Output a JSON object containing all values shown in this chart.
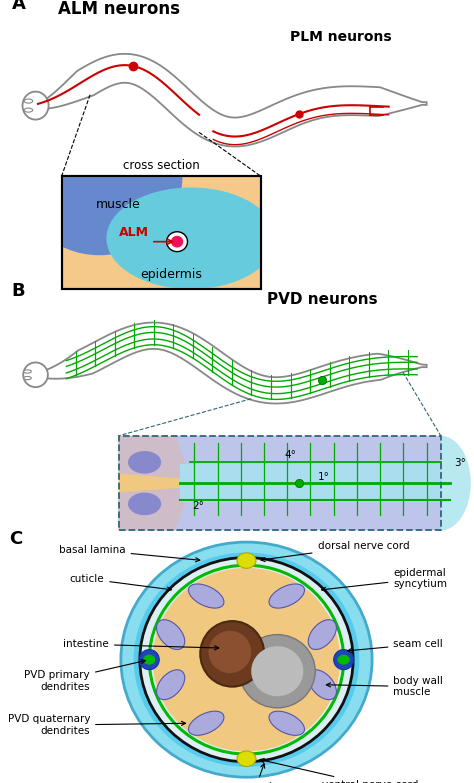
{
  "panel_A": {
    "label": "A",
    "title_ALM": "ALM neurons",
    "title_PLM": "PLM neurons",
    "cross_section_label": "cross section",
    "cross_muscle_label": "muscle",
    "cross_ALM_label": "ALM",
    "cross_epidermis_label": "epidermis",
    "worm_color": "#888888",
    "highlight_color": "#ffff99",
    "neuron_color": "#cc0000",
    "cell_body_color": "#cc0000",
    "muscle_color": "#6688cc",
    "epidermis_color": "#66ccdd",
    "skin_color": "#f5c98a"
  },
  "panel_B": {
    "label": "B",
    "title_PVD": "PVD neurons",
    "worm_color": "#888888",
    "highlight_color": "#ffff99",
    "neuron_color": "#00aa00",
    "labels_degree": [
      "4°",
      "3°",
      "1°",
      "2°"
    ]
  },
  "panel_C": {
    "label": "C",
    "outer_ring_color": "#44bbdd",
    "epidermis_color": "#f0c880",
    "muscle_color": "#aaaadd",
    "intestine_color": "#6b3a1f",
    "gonad_color": "#999999",
    "seam_cell_color": "#2244bb",
    "pvd_primary_color": "#00bb00",
    "nerve_cord_color": "#dddd00",
    "green_line_color": "#00bb00"
  },
  "background_color": "#ffffff",
  "figsize": [
    4.74,
    7.83
  ],
  "dpi": 100
}
